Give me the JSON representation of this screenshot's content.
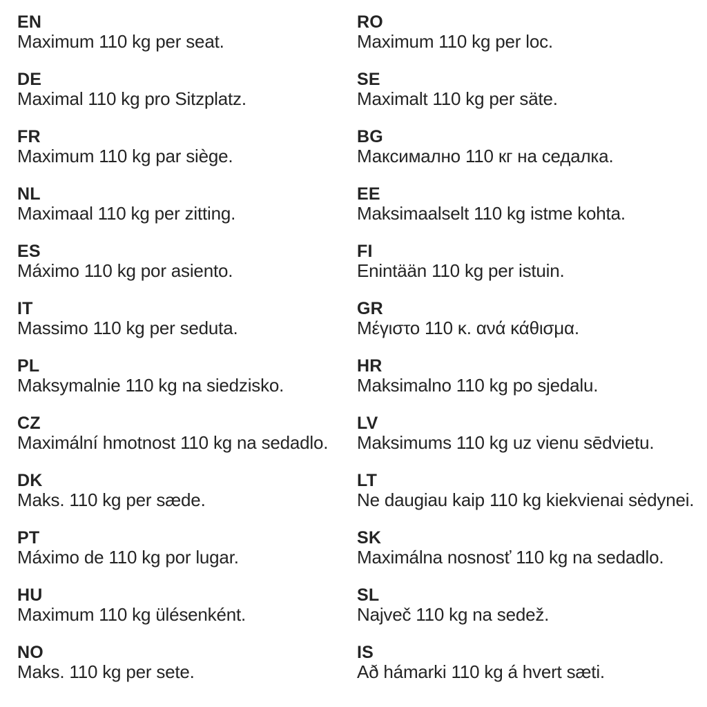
{
  "page": {
    "background": "#ffffff",
    "text_color": "#242424"
  },
  "columns": {
    "left": [
      {
        "code": "EN",
        "text": "Maximum 110 kg per seat."
      },
      {
        "code": "DE",
        "text": "Maximal 110 kg pro Sitzplatz."
      },
      {
        "code": "FR",
        "text": "Maximum 110 kg par siège."
      },
      {
        "code": "NL",
        "text": "Maximaal 110 kg per zitting."
      },
      {
        "code": "ES",
        "text": "Máximo 110 kg por asiento."
      },
      {
        "code": "IT",
        "text": "Massimo 110 kg per seduta."
      },
      {
        "code": "PL",
        "text": "Maksymalnie 110 kg na siedzisko."
      },
      {
        "code": "CZ",
        "text": "Maximální hmotnost 110 kg na sedadlo."
      },
      {
        "code": "DK",
        "text": "Maks. 110 kg per sæde."
      },
      {
        "code": "PT",
        "text": "Máximo de 110 kg por lugar."
      },
      {
        "code": "HU",
        "text": "Maximum 110 kg ülésenként."
      },
      {
        "code": "NO",
        "text": "Maks. 110 kg per sete."
      }
    ],
    "right": [
      {
        "code": "RO",
        "text": "Maximum 110 kg per loc."
      },
      {
        "code": "SE",
        "text": "Maximalt 110 kg per säte."
      },
      {
        "code": "BG",
        "text": "Максимално 110 кг на седалка."
      },
      {
        "code": "EE",
        "text": "Maksimaalselt 110 kg istme kohta."
      },
      {
        "code": "FI",
        "text": "Enintään 110 kg per istuin."
      },
      {
        "code": "GR",
        "text": "Μέγιστο 110 κ. ανά κάθισμα."
      },
      {
        "code": "HR",
        "text": "Maksimalno 110 kg po sjedalu."
      },
      {
        "code": "LV",
        "text": "Maksimums 110 kg uz vienu sēdvietu."
      },
      {
        "code": "LT",
        "text": "Ne daugiau kaip 110 kg kiekvienai sėdynei."
      },
      {
        "code": "SK",
        "text": "Maximálna nosnosť 110 kg na sedadlo."
      },
      {
        "code": "SL",
        "text": "Največ 110 kg na sedež."
      },
      {
        "code": "IS",
        "text": "Að hámarki 110 kg á hvert sæti."
      }
    ]
  }
}
